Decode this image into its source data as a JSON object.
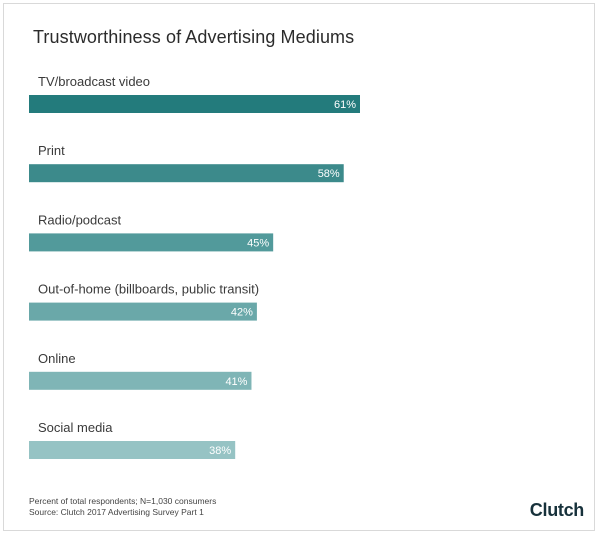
{
  "chart_data": {
    "type": "bar",
    "orientation": "horizontal",
    "title": "Trustworthiness of Advertising Mediums",
    "xlabel": "",
    "ylabel": "",
    "xlim": [
      0,
      100
    ],
    "grid": false,
    "legend": "none",
    "categories": [
      "TV/broadcast video",
      "Print",
      "Radio/podcast",
      "Out-of-home (billboards, public transit)",
      "Online",
      "Social media"
    ],
    "values": [
      61,
      58,
      45,
      42,
      41,
      38
    ],
    "value_labels": [
      "61%",
      "58%",
      "45%",
      "42%",
      "41%",
      "38%"
    ],
    "bar_colors": [
      "#237b7c",
      "#3c8a8b",
      "#529a9b",
      "#6aa8a9",
      "#7fb5b6",
      "#96c3c4"
    ]
  },
  "footnote": {
    "line1": "Percent of total respondents; N=1,030 consumers",
    "line2": "Source: Clutch 2017 Advertising Survey Part 1"
  },
  "brand": "Clutch"
}
